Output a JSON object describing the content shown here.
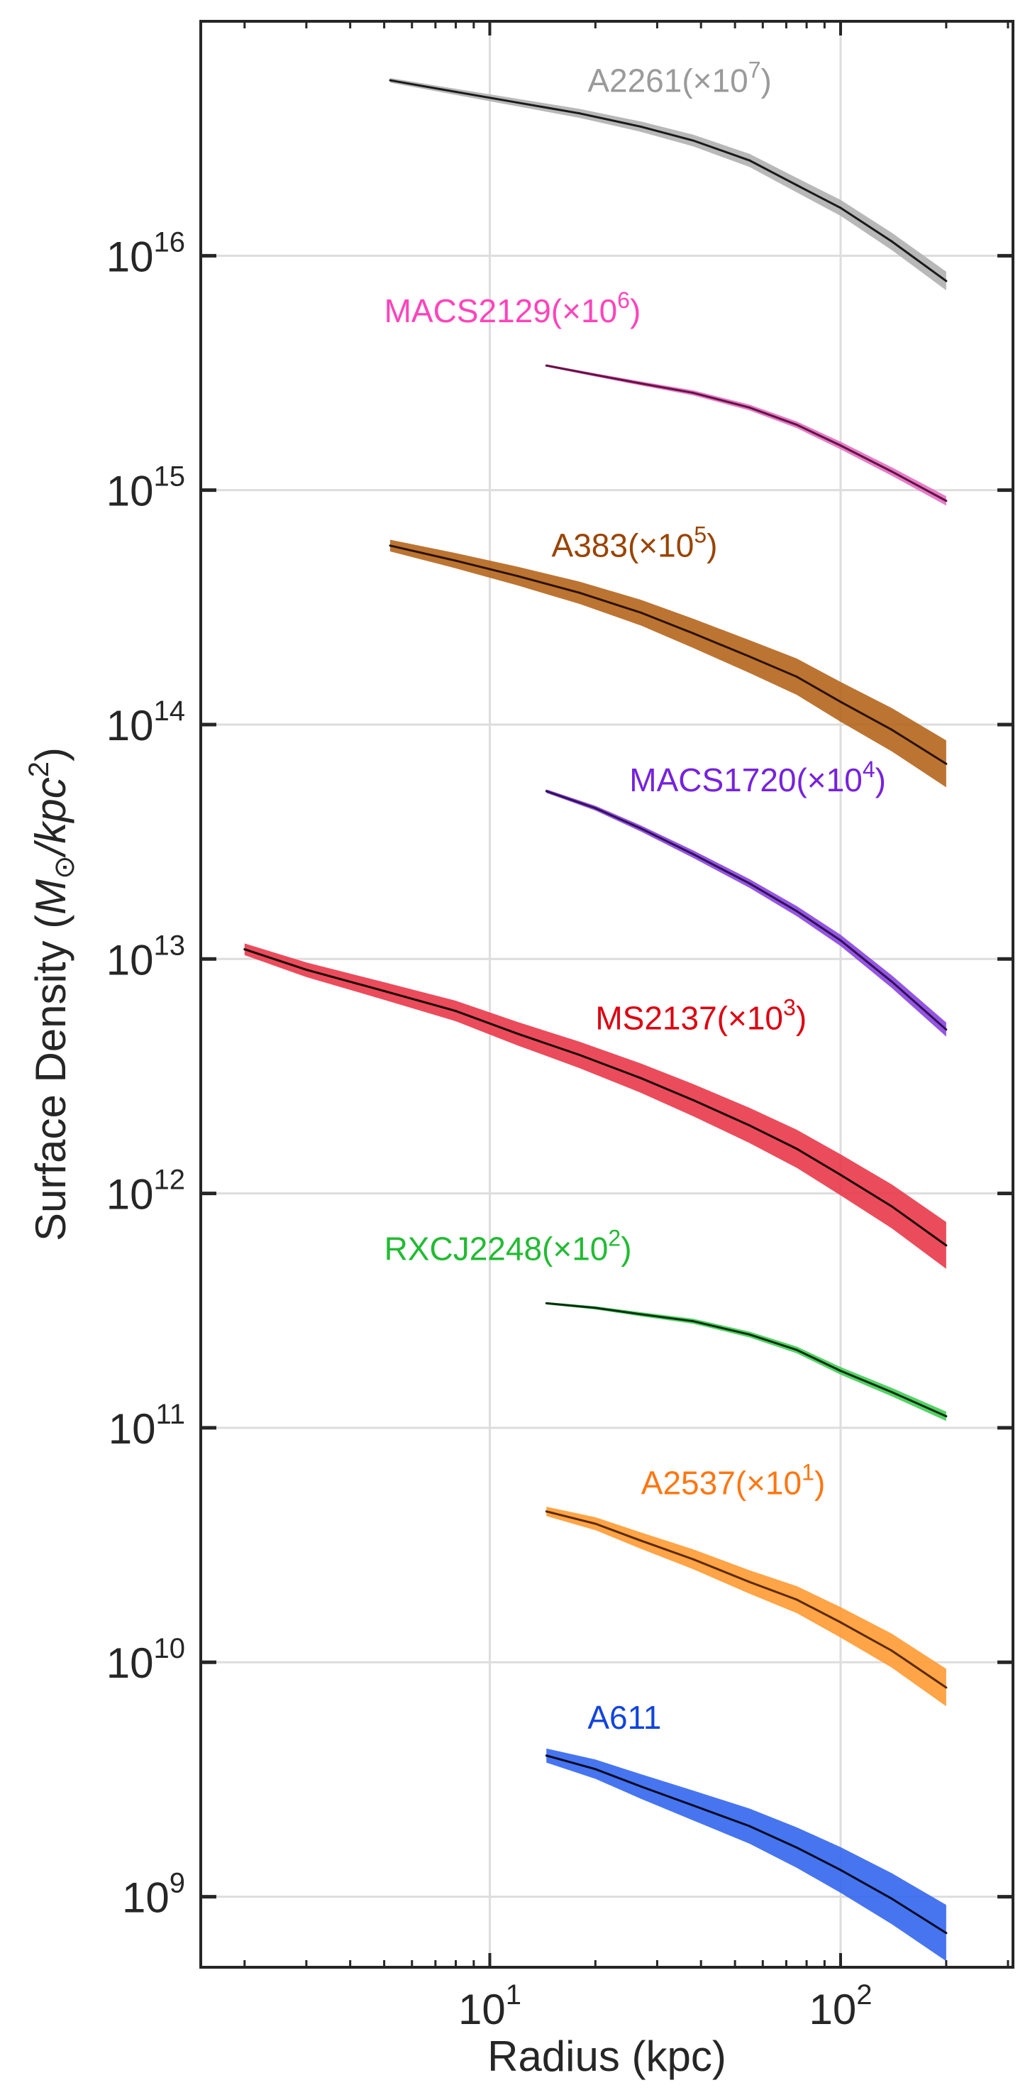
{
  "chart_data": {
    "type": "line",
    "xscale": "log",
    "yscale": "log",
    "xlabel": "Radius (kpc)",
    "ylabel_parts": [
      "Surface Density (",
      "M",
      "⊙",
      "/",
      "kpc",
      "2",
      ")"
    ],
    "xlim": [
      1.5,
      310
    ],
    "ylim": [
      500000000.0,
      1e+17
    ],
    "xtick_exponents": [
      1,
      2
    ],
    "ytick_exponents": [
      9,
      10,
      11,
      12,
      13,
      14,
      15,
      16
    ],
    "tick_base": "10",
    "grid": true,
    "series": [
      {
        "name": "A2261",
        "label_main": "A2261(×10",
        "label_exp": "7",
        "label_tail": ")",
        "color": "#9a9a9a",
        "fill": "#b0b0b0",
        "line": "#1a1a1a",
        "label_xy": [
          19,
          5e+16
        ],
        "x": [
          5.2,
          8,
          12,
          18,
          27,
          38,
          55,
          75,
          100,
          140,
          200
        ],
        "y": [
          5.6e+16,
          5e+16,
          4.5e+16,
          4.05e+16,
          3.55e+16,
          3.1e+16,
          2.55e+16,
          2e+16,
          1.6e+16,
          1.15e+16,
          7800000000000000.0
        ],
        "band": 0.02
      },
      {
        "name": "MACS2129",
        "label_main": "MACS2129(×10",
        "label_exp": "6",
        "label_tail": ")",
        "color": "#ff44bb",
        "fill": "#e070c0",
        "line": "#661144",
        "label_xy": [
          5,
          5200000000000000.0
        ],
        "x": [
          14.5,
          20,
          27,
          38,
          55,
          75,
          100,
          140,
          200
        ],
        "y": [
          3400000000000000.0,
          3100000000000000.0,
          2850000000000000.0,
          2600000000000000.0,
          2250000000000000.0,
          1900000000000000.0,
          1550000000000000.0,
          1200000000000000.0,
          900000000000000.0
        ],
        "band": 0.01
      },
      {
        "name": "A383",
        "label_main": "A383(×10",
        "label_exp": "5",
        "label_tail": ")",
        "color": "#994400",
        "fill": "#b5651d",
        "line": "#2a1200",
        "label_xy": [
          15,
          520000000000000.0
        ],
        "x": [
          5.2,
          8,
          12,
          18,
          27,
          38,
          55,
          75,
          100,
          140,
          200
        ],
        "y": [
          580000000000000.0,
          500000000000000.0,
          430000000000000.0,
          365000000000000.0,
          300000000000000.0,
          245000000000000.0,
          195000000000000.0,
          160000000000000.0,
          125000000000000.0,
          95000000000000.0,
          68000000000000.0
        ],
        "band": 0.05
      },
      {
        "name": "MACS1720",
        "label_main": "MACS1720(×10",
        "label_exp": "4",
        "label_tail": ")",
        "color": "#7722dd",
        "fill": "#8844dd",
        "line": "#33105a",
        "label_xy": [
          25,
          52000000000000.0
        ],
        "x": [
          14.5,
          20,
          27,
          38,
          55,
          75,
          100,
          140,
          200
        ],
        "y": [
          52000000000000.0,
          44000000000000.0,
          36000000000000.0,
          28000000000000.0,
          21000000000000.0,
          16000000000000.0,
          12000000000000.0,
          8000000000000.0,
          5000000000000.0
        ],
        "band": 0.015
      },
      {
        "name": "MS2137",
        "label_main": "MS2137(×10",
        "label_exp": "3",
        "label_tail": ")",
        "color": "#dd0011",
        "fill": "#e8394a",
        "line": "#1a0000",
        "label_xy": [
          20,
          5000000000000.0
        ],
        "x": [
          2.0,
          3.0,
          5.0,
          8.0,
          12,
          18,
          27,
          38,
          55,
          75,
          100,
          140,
          200
        ],
        "y": [
          11000000000000.0,
          9000000000000.0,
          7300000000000.0,
          6000000000000.0,
          4800000000000.0,
          3900000000000.0,
          3100000000000.0,
          2500000000000.0,
          1950000000000.0,
          1550000000000.0,
          1200000000000.0,
          880000000000.0,
          600000000000.0
        ],
        "band": 0.05
      },
      {
        "name": "RXCJ2248",
        "label_main": "RXCJ2248(×10",
        "label_exp": "2",
        "label_tail": ")",
        "color": "#22bb33",
        "fill": "#44cc55",
        "line": "#06300e",
        "label_xy": [
          5,
          520000000000.0
        ],
        "x": [
          14.5,
          20,
          27,
          38,
          55,
          75,
          100,
          140,
          200
        ],
        "y": [
          340000000000.0,
          325000000000.0,
          305000000000.0,
          285000000000.0,
          250000000000.0,
          215000000000.0,
          175000000000.0,
          142000000000.0,
          112000000000.0
        ],
        "band": 0.01
      },
      {
        "name": "A2537",
        "label_main": "A2537(×10",
        "label_exp": "1",
        "label_tail": ")",
        "color": "#ff7711",
        "fill": "#ff9a33",
        "line": "#5a2a00",
        "label_xy": [
          27,
          52000000000.0
        ],
        "x": [
          14.5,
          20,
          27,
          38,
          55,
          75,
          100,
          140,
          200
        ],
        "y": [
          44000000000.0,
          39000000000.0,
          33000000000.0,
          27500000000.0,
          22000000000.0,
          18500000000.0,
          14800000000.0,
          11200000000.0,
          7800000000.0
        ],
        "band": 0.04
      },
      {
        "name": "A611",
        "label_main": "A611",
        "label_exp": "",
        "label_tail": "",
        "color": "#1144dd",
        "fill": "#3366ee",
        "line": "#000a22",
        "label_xy": [
          19,
          5200000000.0
        ],
        "x": [
          14.5,
          20,
          27,
          38,
          55,
          75,
          100,
          140,
          200
        ],
        "y": [
          4000000000.0,
          3500000000.0,
          2950000000.0,
          2450000000.0,
          2000000000.0,
          1620000000.0,
          1300000000.0,
          980000000.0,
          700000000.0
        ],
        "band": 0.06
      }
    ]
  }
}
